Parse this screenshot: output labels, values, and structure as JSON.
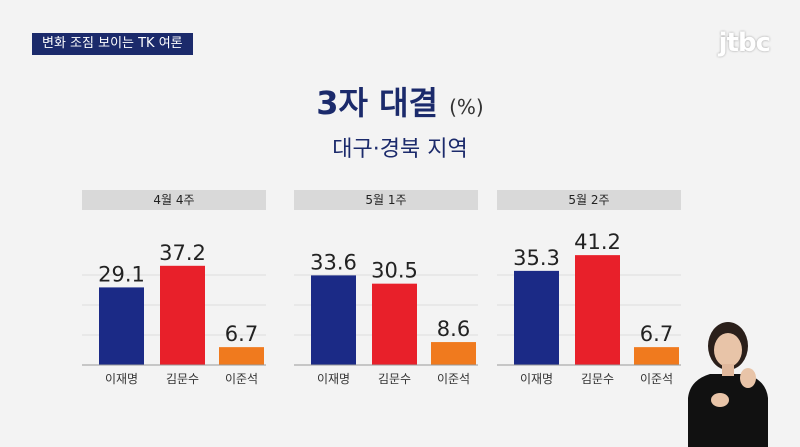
{
  "tag_text": "변화 조짐 보이는 TK 여론",
  "logo_text": "jtbc",
  "title": "3자 대결",
  "title_unit": "(%)",
  "subtitle": "대구·경북 지역",
  "colors": {
    "navy": "#1b2a86",
    "red": "#e8202a",
    "orange": "#f07a1e"
  },
  "chart_data": [
    {
      "type": "bar",
      "title": "4월 4주",
      "categories": [
        "이재명",
        "김문수",
        "이준석"
      ],
      "values": [
        29.1,
        37.2,
        6.7
      ],
      "ylim": [
        0,
        45
      ]
    },
    {
      "type": "bar",
      "title": "5월 1주",
      "categories": [
        "이재명",
        "김문수",
        "이준석"
      ],
      "values": [
        33.6,
        30.5,
        8.6
      ],
      "ylim": [
        0,
        45
      ]
    },
    {
      "type": "bar",
      "title": "5월 2주",
      "categories": [
        "이재명",
        "김문수",
        "이준석"
      ],
      "values": [
        35.3,
        41.2,
        6.7
      ],
      "ylim": [
        0,
        45
      ]
    }
  ]
}
